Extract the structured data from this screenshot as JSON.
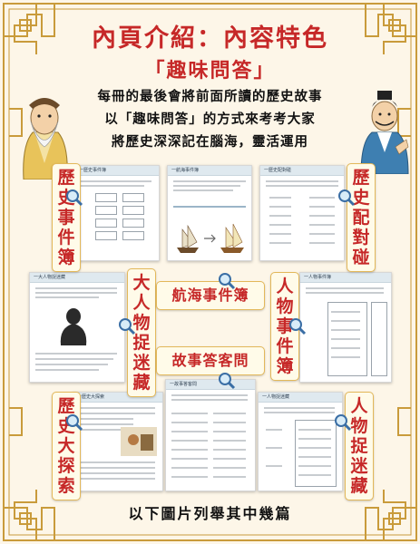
{
  "title": "內頁介紹：內容特色",
  "subtitle": "「趣味問答」",
  "intro": [
    "每冊的最後會將前面所讀的歷史故事",
    "以「趣味問答」的方式來考考大家",
    "將歷史深深記在腦海，靈活運用"
  ],
  "labels": {
    "history_events": [
      "歷",
      "史",
      "事",
      "件",
      "簿"
    ],
    "history_match": [
      "歷",
      "史",
      "配",
      "對",
      "碰"
    ],
    "figure_hide": [
      "大",
      "人",
      "物",
      "捉",
      "迷",
      "藏"
    ],
    "voyage": "航海事件簿",
    "people_events": [
      "人",
      "物",
      "事",
      "件",
      "簿"
    ],
    "story_qa": "故事答客問",
    "history_explore": [
      "歷",
      "史",
      "大",
      "探",
      "索"
    ],
    "figure_hide2": [
      "人",
      "物",
      "捉",
      "迷",
      "藏"
    ]
  },
  "cards": {
    "c1": "一歷史事件簿",
    "c2": "一航海事件簿",
    "c3": "一歷史配對碰",
    "c4": "一大人物捉迷藏",
    "c5": "一人物事件簿",
    "c6": "一歷史大探索",
    "c7": "一故事答客問",
    "c8": "一人物捉迷藏"
  },
  "footer": "以下圖片列舉其中幾篇",
  "colors": {
    "accent": "#c62828",
    "frame": "#c99b3b",
    "background": "#fdf6e8"
  }
}
